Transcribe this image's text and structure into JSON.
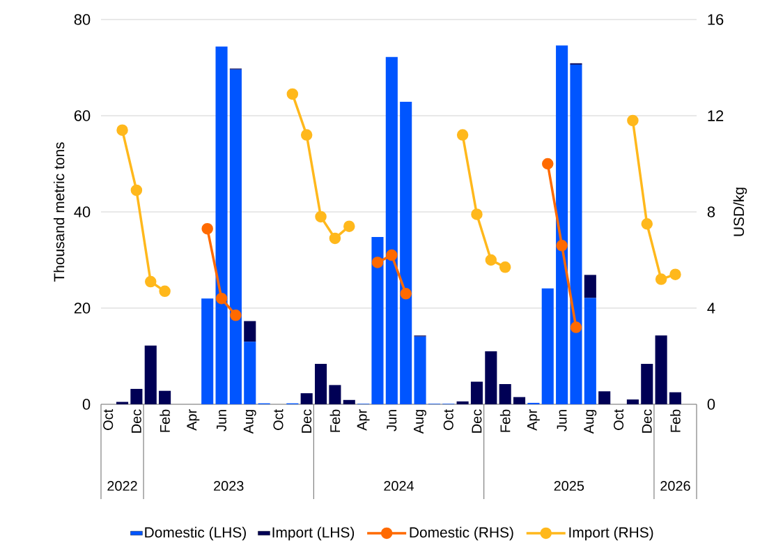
{
  "chart_data": {
    "type": "bar",
    "stacked": true,
    "x": [
      "2022-10",
      "2022-11",
      "2022-12",
      "2023-01",
      "2023-02",
      "2023-03",
      "2023-04",
      "2023-05",
      "2023-06",
      "2023-07",
      "2023-08",
      "2023-09",
      "2023-10",
      "2023-11",
      "2023-12",
      "2024-01",
      "2024-02",
      "2024-03",
      "2024-04",
      "2024-05",
      "2024-06",
      "2024-07",
      "2024-08",
      "2024-09",
      "2024-10",
      "2024-11",
      "2024-12",
      "2025-01",
      "2025-02",
      "2025-03",
      "2025-04",
      "2025-05",
      "2025-06",
      "2025-07",
      "2025-08",
      "2025-09",
      "2025-10",
      "2025-11",
      "2025-12",
      "2026-01",
      "2026-02",
      "2026-03"
    ],
    "xlim": [
      "2022-09-16",
      "2026-03-16"
    ],
    "xticks": [
      {
        "value": "2022-10",
        "label": "Oct"
      },
      {
        "value": "2022-12",
        "label": "Dec"
      },
      {
        "value": "2023-02",
        "label": "Feb"
      },
      {
        "value": "2023-04",
        "label": "Apr"
      },
      {
        "value": "2023-06",
        "label": "Jun"
      },
      {
        "value": "2023-08",
        "label": "Aug"
      },
      {
        "value": "2023-10",
        "label": "Oct"
      },
      {
        "value": "2023-12",
        "label": "Dec"
      },
      {
        "value": "2024-02",
        "label": "Feb"
      },
      {
        "value": "2024-04",
        "label": "Apr"
      },
      {
        "value": "2024-06",
        "label": "Jun"
      },
      {
        "value": "2024-08",
        "label": "Aug"
      },
      {
        "value": "2024-10",
        "label": "Oct"
      },
      {
        "value": "2024-12",
        "label": "Dec"
      },
      {
        "value": "2025-02",
        "label": "Feb"
      },
      {
        "value": "2025-04",
        "label": "Apr"
      },
      {
        "value": "2025-06",
        "label": "Jun"
      },
      {
        "value": "2025-08",
        "label": "Aug"
      },
      {
        "value": "2025-10",
        "label": "Oct"
      },
      {
        "value": "2025-12",
        "label": "Dec"
      },
      {
        "value": "2026-02",
        "label": "Feb"
      }
    ],
    "ylim": [
      0,
      80
    ],
    "yticks": [
      0,
      20,
      40,
      60,
      80
    ],
    "y2lim": [
      0,
      16
    ],
    "y2ticks": [
      0,
      4,
      8,
      12,
      16
    ],
    "ylabel": "Thousand metric tons",
    "y2label": "USD/kg",
    "grid": "y",
    "legend": "bottom",
    "marker": "circle",
    "annotations": [
      "2022",
      "2023",
      "2024",
      "2025",
      "2026"
    ],
    "series": [
      {
        "name": "Domestic (LHS)",
        "type": "bar",
        "color": "#0055ff",
        "values": [
          0,
          0,
          0,
          0,
          0,
          0,
          0,
          22.0,
          74.4,
          69.6,
          13.0,
          0.2,
          0,
          0.2,
          0,
          0,
          0,
          0,
          0.1,
          34.8,
          72.2,
          62.9,
          14.1,
          0.1,
          0.1,
          0,
          0,
          0,
          0,
          0,
          0.3,
          24.1,
          74.6,
          70.6,
          22.1,
          0,
          0,
          0,
          0,
          0,
          0,
          0
        ]
      },
      {
        "name": "Import (LHS)",
        "type": "bar",
        "color": "#000055",
        "values": [
          0,
          0.5,
          3.2,
          12.2,
          2.8,
          0,
          0,
          0,
          0,
          0.2,
          4.3,
          0,
          0,
          0,
          2.3,
          8.4,
          4.0,
          0.9,
          0,
          0,
          0,
          0,
          0.2,
          0,
          0,
          0.6,
          4.7,
          11.0,
          4.2,
          1.5,
          0,
          0,
          0,
          0.3,
          4.8,
          2.7,
          0,
          1.0,
          8.4,
          14.3,
          2.5,
          0
        ]
      },
      {
        "name": "Domestic (RHS)",
        "type": "line",
        "axis": "y2",
        "color": "#ff6a00",
        "values": [
          null,
          null,
          null,
          null,
          null,
          null,
          null,
          7.3,
          4.4,
          3.7,
          null,
          null,
          null,
          null,
          null,
          null,
          null,
          null,
          null,
          5.9,
          6.2,
          4.6,
          null,
          null,
          null,
          null,
          null,
          null,
          null,
          null,
          null,
          10.0,
          6.6,
          3.2,
          null,
          null,
          null,
          null,
          null,
          null,
          null,
          null
        ]
      },
      {
        "name": "Import (RHS)",
        "type": "line",
        "axis": "y2",
        "color": "#ffb81c",
        "values": [
          null,
          11.4,
          8.9,
          5.1,
          4.7,
          null,
          null,
          null,
          null,
          null,
          null,
          null,
          null,
          12.9,
          11.2,
          7.8,
          6.9,
          7.4,
          null,
          null,
          null,
          null,
          null,
          null,
          null,
          11.2,
          7.9,
          6.0,
          5.7,
          null,
          null,
          null,
          null,
          null,
          null,
          null,
          null,
          11.8,
          7.5,
          5.2,
          5.4,
          null
        ]
      }
    ]
  }
}
